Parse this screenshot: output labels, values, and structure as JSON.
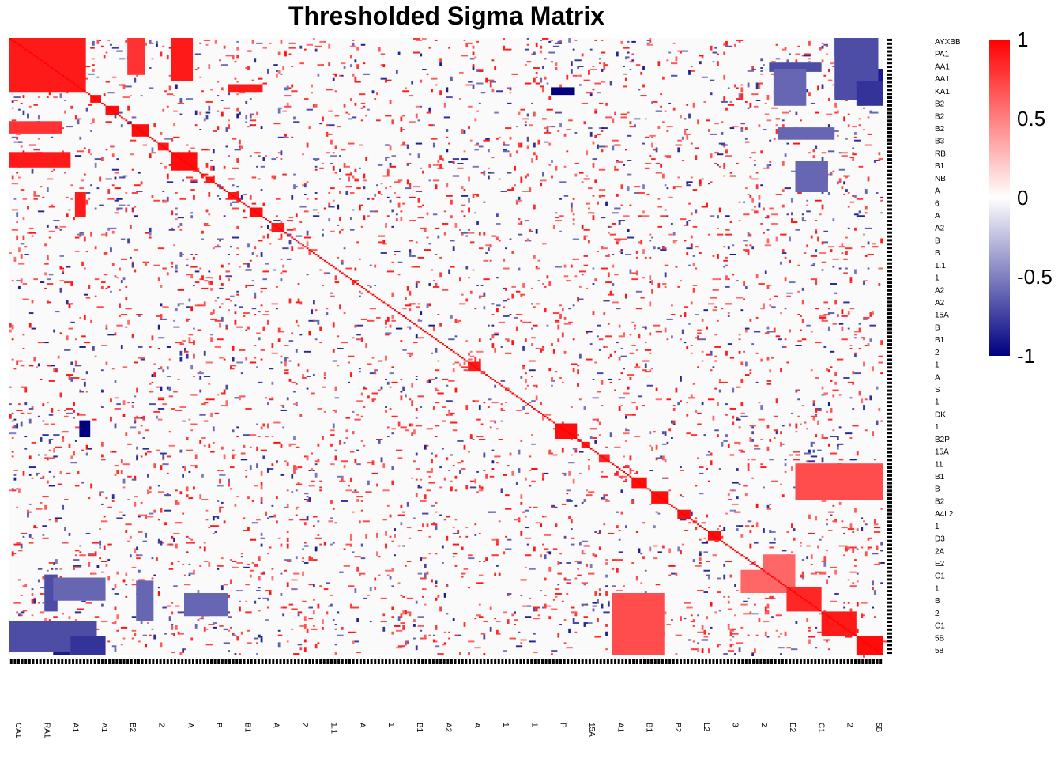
{
  "chart_data": {
    "type": "heatmap",
    "title": "Thresholded Sigma Matrix",
    "xlabel": "",
    "ylabel": "",
    "value_range": [
      -1,
      1
    ],
    "colorscale": {
      "low": "#000080",
      "mid": "#ffffff",
      "high": "#ff0000",
      "background": "#fafafa"
    },
    "legend": {
      "placement": "right",
      "ticks": [
        {
          "value": 1,
          "label": "1"
        },
        {
          "value": 0.5,
          "label": "0.5"
        },
        {
          "value": 0,
          "label": "0"
        },
        {
          "value": -0.5,
          "label": "-0.5"
        },
        {
          "value": -1,
          "label": "-1"
        }
      ]
    },
    "n_variables": 400,
    "correlation_blocks": [
      {
        "start": 0,
        "end": 35,
        "value": 0.9
      },
      {
        "start": 37,
        "end": 42,
        "value": 0.95
      },
      {
        "start": 44,
        "end": 50,
        "value": 0.95
      },
      {
        "start": 56,
        "end": 64,
        "value": 0.95
      },
      {
        "start": 68,
        "end": 73,
        "value": 0.9
      },
      {
        "start": 74,
        "end": 86,
        "value": 0.95
      },
      {
        "start": 90,
        "end": 94,
        "value": 0.9
      },
      {
        "start": 100,
        "end": 105,
        "value": 0.9
      },
      {
        "start": 110,
        "end": 116,
        "value": 0.95
      },
      {
        "start": 120,
        "end": 126,
        "value": 0.9
      },
      {
        "start": 210,
        "end": 216,
        "value": 0.9
      },
      {
        "start": 250,
        "end": 260,
        "value": 0.95
      },
      {
        "start": 262,
        "end": 266,
        "value": 0.9
      },
      {
        "start": 270,
        "end": 275,
        "value": 0.85
      },
      {
        "start": 285,
        "end": 292,
        "value": 0.95
      },
      {
        "start": 294,
        "end": 302,
        "value": 0.95
      },
      {
        "start": 306,
        "end": 312,
        "value": 0.95
      },
      {
        "start": 320,
        "end": 326,
        "value": 0.95
      },
      {
        "start": 356,
        "end": 372,
        "value": 0.85
      },
      {
        "start": 372,
        "end": 388,
        "value": 0.9
      },
      {
        "start": 388,
        "end": 400,
        "value": 0.95
      }
    ],
    "offdiag_blocks": [
      {
        "rows": [
          0,
          28
        ],
        "cols": [
          74,
          84
        ],
        "value": 0.9
      },
      {
        "rows": [
          54,
          62
        ],
        "cols": [
          0,
          24
        ],
        "value": 0.8
      },
      {
        "rows": [
          30,
          35
        ],
        "cols": [
          100,
          116
        ],
        "value": 0.9
      },
      {
        "rows": [
          32,
          37
        ],
        "cols": [
          248,
          259
        ],
        "value": -1
      },
      {
        "rows": [
          0,
          12
        ],
        "cols": [
          378,
          395
        ],
        "value": -0.8
      },
      {
        "rows": [
          20,
          28
        ],
        "cols": [
          388,
          400
        ],
        "value": -0.9
      },
      {
        "rows": [
          16,
          22
        ],
        "cols": [
          348,
          372
        ],
        "value": -0.7
      },
      {
        "rows": [
          58,
          66
        ],
        "cols": [
          352,
          378
        ],
        "value": -0.6
      },
      {
        "rows": [
          276,
          300
        ],
        "cols": [
          360,
          400
        ],
        "value": 0.7
      },
      {
        "rows": [
          350,
          365
        ],
        "cols": [
          20,
          44
        ],
        "value": -0.6
      },
      {
        "rows": [
          360,
          375
        ],
        "cols": [
          80,
          100
        ],
        "value": -0.6
      },
      {
        "rows": [
          345,
          360
        ],
        "cols": [
          335,
          358
        ],
        "value": 0.6
      },
      {
        "rows": [
          378,
          398
        ],
        "cols": [
          0,
          40
        ],
        "value": -0.7
      },
      {
        "rows": [
          388,
          400
        ],
        "cols": [
          28,
          44
        ],
        "value": -0.8
      }
    ],
    "x_tick_labels": [
      "CA1",
      "RA1",
      "A1",
      "A1",
      "B2",
      "2",
      "A",
      "B",
      "B1",
      "A",
      "2",
      "1.1",
      "A",
      "1",
      "B1",
      "A2",
      "A",
      "1",
      "1",
      "P",
      "15A",
      "A1",
      "B1",
      "B2",
      "L2",
      "3",
      "2",
      "E2",
      "C1",
      "2",
      "5B"
    ],
    "y_tick_labels": [
      "AYXBB",
      "PA1",
      "AA1",
      "AA1",
      "KA1",
      "B2",
      "B2",
      "B2",
      "B3",
      "RB",
      "B1",
      "NB",
      "A",
      "6",
      "A",
      "A2",
      "B",
      "B",
      "1.1",
      "1",
      "A2",
      "A2",
      "15A",
      "B",
      "B1",
      "2",
      "1",
      "A",
      "S",
      "1",
      "DK",
      "1",
      "B2P",
      "15A",
      "11",
      "B1",
      "B",
      "B2",
      "A4L2",
      "1",
      "D3",
      "2A",
      "E2",
      "C1",
      "1",
      "B",
      "2",
      "C1",
      "5B",
      "58"
    ]
  }
}
